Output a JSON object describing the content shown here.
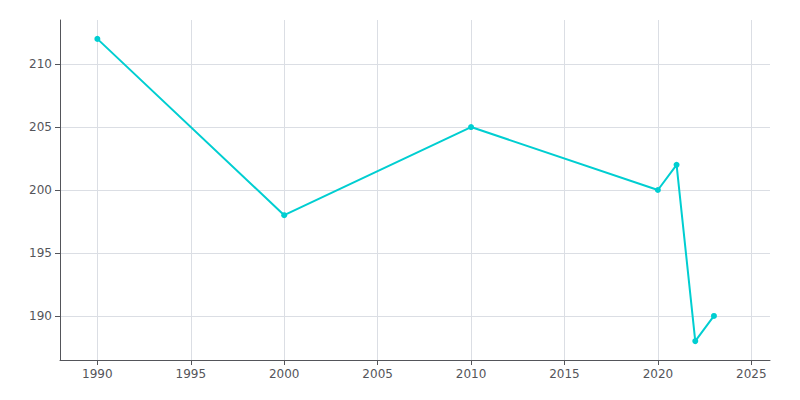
{
  "chart_data": {
    "type": "line",
    "x": [
      1990,
      2000,
      2010,
      2020,
      2021,
      2022,
      2023
    ],
    "values": [
      212,
      198,
      205,
      200,
      202,
      188,
      190
    ],
    "color": "#00CED1",
    "marker": "circle",
    "xlim": [
      1988,
      2026
    ],
    "ylim": [
      186.5,
      213.5
    ],
    "xticks": [
      1990,
      1995,
      2000,
      2005,
      2010,
      2015,
      2020,
      2025
    ],
    "yticks": [
      190,
      195,
      200,
      205,
      210
    ],
    "grid": true
  }
}
